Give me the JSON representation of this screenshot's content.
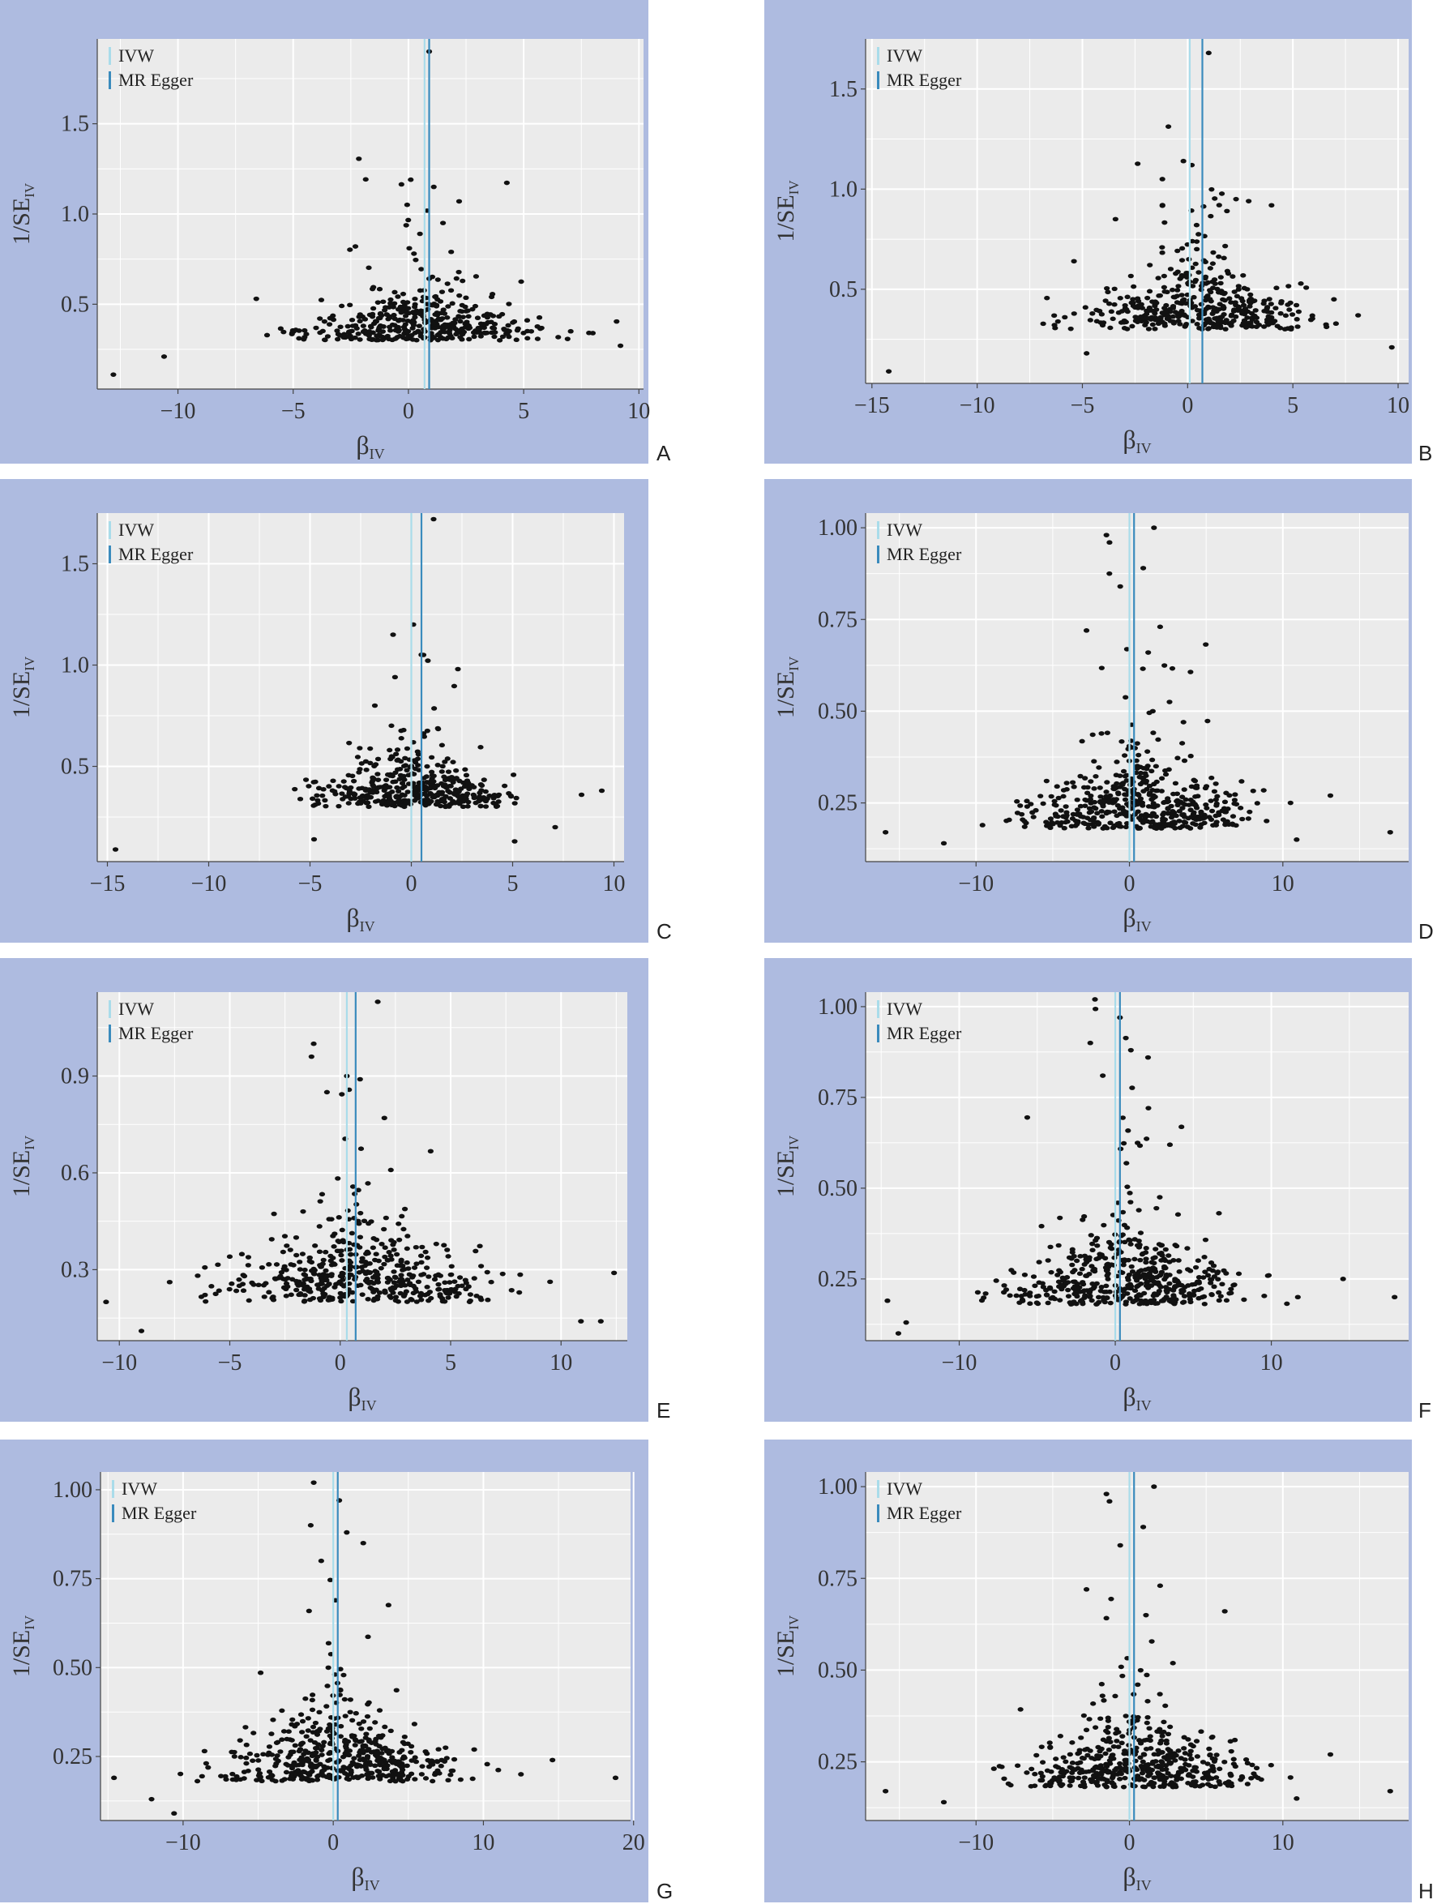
{
  "legend": [
    {
      "name": "IVW",
      "color": "#a9dcea"
    },
    {
      "name": "MR Egger",
      "color": "#3a8bbd"
    }
  ],
  "colors": {
    "frame": "#aebbe0",
    "plot_bg": "#ebebeb",
    "grid": "#ffffff",
    "point": "#111111",
    "text": "#333333"
  },
  "chart_data": [
    {
      "type": "scatter",
      "panel": "A",
      "xlabel": "β",
      "xlabel_sub": "IV",
      "ylabel": "1/SE",
      "ylabel_sub": "IV",
      "xlim": [
        -13.5,
        10.2
      ],
      "ylim": [
        0.03,
        1.97
      ],
      "xticks": [
        -10,
        -5,
        0,
        5,
        10
      ],
      "xtick_labels": [
        "−10",
        "−5",
        "0",
        "5",
        "10"
      ],
      "yticks": [
        0.5,
        1.0,
        1.5
      ],
      "ytick_labels": [
        "0.5",
        "1.0",
        "1.5"
      ],
      "lines": {
        "IVW": 0.7,
        "MR Egger": 0.9
      },
      "bulk": {
        "n": 420,
        "x_sd": 2.4,
        "x_center": 0.5,
        "x_min": -6.5,
        "x_max": 9.2,
        "y_min": 0.18,
        "y_base": 0.3,
        "y_scale": 0.08,
        "seed": 11
      },
      "points": [
        [
          -12.8,
          0.11
        ],
        [
          -10.6,
          0.21
        ],
        [
          0.9,
          1.9
        ],
        [
          0.1,
          1.19
        ],
        [
          1.1,
          1.15
        ],
        [
          2.2,
          1.07
        ],
        [
          1.5,
          0.95
        ],
        [
          -2.3,
          0.82
        ],
        [
          0.5,
          0.89
        ],
        [
          9.2,
          0.27
        ],
        [
          8.0,
          0.34
        ],
        [
          -6.6,
          0.53
        ]
      ]
    },
    {
      "type": "scatter",
      "panel": "B",
      "xlabel": "β",
      "xlabel_sub": "IV",
      "ylabel": "1/SE",
      "ylabel_sub": "IV",
      "xlim": [
        -15.3,
        10.5
      ],
      "ylim": [
        0.03,
        1.75
      ],
      "xticks": [
        -15,
        -10,
        -5,
        0,
        5,
        10
      ],
      "xtick_labels": [
        "−15",
        "−10",
        "−5",
        "0",
        "5",
        "10"
      ],
      "yticks": [
        0.5,
        1.0,
        1.5
      ],
      "ytick_labels": [
        "0.5",
        "1.0",
        "1.5"
      ],
      "lines": {
        "IVW": 0.1,
        "MR Egger": 0.7
      },
      "bulk": {
        "n": 420,
        "x_sd": 2.6,
        "x_center": 0.3,
        "x_min": -8,
        "x_max": 8.5,
        "y_min": 0.2,
        "y_base": 0.3,
        "y_scale": 0.09,
        "seed": 23
      },
      "points": [
        [
          -14.2,
          0.09
        ],
        [
          1.0,
          1.68
        ],
        [
          -0.2,
          1.14
        ],
        [
          0.2,
          1.12
        ],
        [
          -1.2,
          1.05
        ],
        [
          2.3,
          0.95
        ],
        [
          2.9,
          0.94
        ],
        [
          1.5,
          0.92
        ],
        [
          9.7,
          0.21
        ],
        [
          8.1,
          0.37
        ],
        [
          -5.4,
          0.64
        ],
        [
          -4.8,
          0.18
        ]
      ]
    },
    {
      "type": "scatter",
      "panel": "C",
      "xlabel": "β",
      "xlabel_sub": "IV",
      "ylabel": "1/SE",
      "ylabel_sub": "IV",
      "xlim": [
        -15.5,
        10.5
      ],
      "ylim": [
        0.03,
        1.75
      ],
      "xticks": [
        -15,
        -10,
        -5,
        0,
        5,
        10
      ],
      "xtick_labels": [
        "−15",
        "−10",
        "−5",
        "0",
        "5",
        "10"
      ],
      "yticks": [
        0.5,
        1.0,
        1.5
      ],
      "ytick_labels": [
        "0.5",
        "1.0",
        "1.5"
      ],
      "lines": {
        "IVW": 0.0,
        "MR Egger": 0.5
      },
      "bulk": {
        "n": 400,
        "x_sd": 2.3,
        "x_center": 0.0,
        "x_min": -7.5,
        "x_max": 5.5,
        "y_min": 0.2,
        "y_base": 0.3,
        "y_scale": 0.08,
        "seed": 37
      },
      "points": [
        [
          -14.6,
          0.09
        ],
        [
          1.1,
          1.72
        ],
        [
          0.1,
          1.2
        ],
        [
          -0.9,
          1.15
        ],
        [
          0.6,
          1.05
        ],
        [
          2.3,
          0.98
        ],
        [
          -1.8,
          0.8
        ],
        [
          9.4,
          0.38
        ],
        [
          8.4,
          0.36
        ],
        [
          7.1,
          0.2
        ],
        [
          5.1,
          0.13
        ],
        [
          -4.8,
          0.14
        ]
      ]
    },
    {
      "type": "scatter",
      "panel": "D",
      "xlabel": "β",
      "xlabel_sub": "IV",
      "ylabel": "1/SE",
      "ylabel_sub": "IV",
      "xlim": [
        -17.2,
        18.2
      ],
      "ylim": [
        0.09,
        1.04
      ],
      "xticks": [
        -10,
        0,
        10
      ],
      "xtick_labels": [
        "−10",
        "0",
        "10"
      ],
      "yticks": [
        0.25,
        0.5,
        0.75,
        1.0
      ],
      "ytick_labels": [
        "0.25",
        "0.50",
        "0.75",
        "1.00"
      ],
      "lines": {
        "IVW": 0.0,
        "MR Egger": 0.3
      },
      "bulk": {
        "n": 480,
        "x_sd": 3.6,
        "x_center": 0.5,
        "x_min": -11,
        "x_max": 10.5,
        "y_min": 0.12,
        "y_base": 0.18,
        "y_scale": 0.06,
        "seed": 41
      },
      "points": [
        [
          -15.9,
          0.17
        ],
        [
          17.0,
          0.17
        ],
        [
          -12.1,
          0.14
        ],
        [
          13.1,
          0.27
        ],
        [
          1.6,
          1.0
        ],
        [
          -1.5,
          0.98
        ],
        [
          -1.3,
          0.96
        ],
        [
          0.9,
          0.89
        ],
        [
          -0.6,
          0.84
        ],
        [
          2.0,
          0.73
        ],
        [
          -2.8,
          0.72
        ],
        [
          10.9,
          0.15
        ]
      ]
    },
    {
      "type": "scatter",
      "panel": "E",
      "xlabel": "β",
      "xlabel_sub": "IV",
      "ylabel": "1/SE",
      "ylabel_sub": "IV",
      "xlim": [
        -11.0,
        13.0
      ],
      "ylim": [
        0.08,
        1.16
      ],
      "xticks": [
        -10,
        -5,
        0,
        5,
        10
      ],
      "xtick_labels": [
        "−10",
        "−5",
        "0",
        "5",
        "10"
      ],
      "yticks": [
        0.3,
        0.6,
        0.9
      ],
      "ytick_labels": [
        "0.3",
        "0.6",
        "0.9"
      ],
      "lines": {
        "IVW": 0.3,
        "MR Egger": 0.7
      },
      "bulk": {
        "n": 460,
        "x_sd": 3.0,
        "x_center": 0.8,
        "x_min": -10.5,
        "x_max": 10.5,
        "y_min": 0.13,
        "y_base": 0.2,
        "y_scale": 0.07,
        "seed": 53
      },
      "points": [
        [
          -10.6,
          0.2
        ],
        [
          12.4,
          0.29
        ],
        [
          11.8,
          0.14
        ],
        [
          10.9,
          0.14
        ],
        [
          -9.0,
          0.11
        ],
        [
          1.7,
          1.13
        ],
        [
          -1.2,
          1.0
        ],
        [
          -1.3,
          0.96
        ],
        [
          0.3,
          0.9
        ],
        [
          0.9,
          0.89
        ],
        [
          -0.6,
          0.85
        ],
        [
          2.0,
          0.77
        ]
      ]
    },
    {
      "type": "scatter",
      "panel": "F",
      "xlabel": "β",
      "xlabel_sub": "IV",
      "ylabel": "1/SE",
      "ylabel_sub": "IV",
      "xlim": [
        -16.0,
        18.8
      ],
      "ylim": [
        0.08,
        1.04
      ],
      "xticks": [
        -10,
        0,
        10
      ],
      "xtick_labels": [
        "−10",
        "0",
        "10"
      ],
      "yticks": [
        0.25,
        0.5,
        0.75,
        1.0
      ],
      "ytick_labels": [
        "0.25",
        "0.50",
        "0.75",
        "1.00"
      ],
      "lines": {
        "IVW": 0.0,
        "MR Egger": 0.3
      },
      "bulk": {
        "n": 480,
        "x_sd": 3.5,
        "x_center": 0.5,
        "x_min": -10.5,
        "x_max": 11,
        "y_min": 0.12,
        "y_base": 0.18,
        "y_scale": 0.06,
        "seed": 67
      },
      "points": [
        [
          -14.6,
          0.19
        ],
        [
          17.9,
          0.2
        ],
        [
          14.6,
          0.25
        ],
        [
          -13.4,
          0.13
        ],
        [
          -13.9,
          0.1
        ],
        [
          -1.3,
          1.02
        ],
        [
          0.3,
          0.97
        ],
        [
          -1.6,
          0.9
        ],
        [
          1.0,
          0.88
        ],
        [
          2.1,
          0.86
        ],
        [
          -0.8,
          0.81
        ],
        [
          11.7,
          0.2
        ]
      ]
    },
    {
      "type": "scatter",
      "panel": "G",
      "xlabel": "β",
      "xlabel_sub": "IV",
      "ylabel": "1/SE",
      "ylabel_sub": "IV",
      "xlim": [
        -15.5,
        19.8
      ],
      "ylim": [
        0.07,
        1.05
      ],
      "xticks": [
        -10,
        0,
        10,
        20
      ],
      "xtick_labels": [
        "−10",
        "0",
        "10",
        "20"
      ],
      "yticks": [
        0.25,
        0.5,
        0.75,
        1.0
      ],
      "ytick_labels": [
        "0.25",
        "0.50",
        "0.75",
        "1.00"
      ],
      "lines": {
        "IVW": 0.0,
        "MR Egger": 0.3
      },
      "bulk": {
        "n": 480,
        "x_sd": 3.6,
        "x_center": 0.6,
        "x_min": -10.5,
        "x_max": 11,
        "y_min": 0.12,
        "y_base": 0.18,
        "y_scale": 0.06,
        "seed": 79
      },
      "points": [
        [
          -14.6,
          0.19
        ],
        [
          18.8,
          0.19
        ],
        [
          14.6,
          0.24
        ],
        [
          -12.1,
          0.13
        ],
        [
          -10.6,
          0.09
        ],
        [
          -1.3,
          1.02
        ],
        [
          0.4,
          0.97
        ],
        [
          -1.5,
          0.9
        ],
        [
          0.9,
          0.88
        ],
        [
          2.0,
          0.85
        ],
        [
          -0.8,
          0.8
        ],
        [
          12.5,
          0.2
        ]
      ]
    },
    {
      "type": "scatter",
      "panel": "H",
      "xlabel": "β",
      "xlabel_sub": "IV",
      "ylabel": "1/SE",
      "ylabel_sub": "IV",
      "xlim": [
        -17.2,
        18.2
      ],
      "ylim": [
        0.09,
        1.04
      ],
      "xticks": [
        -10,
        0,
        10
      ],
      "xtick_labels": [
        "−10",
        "0",
        "10"
      ],
      "yticks": [
        0.25,
        0.5,
        0.75,
        1.0
      ],
      "ytick_labels": [
        "0.25",
        "0.50",
        "0.75",
        "1.00"
      ],
      "lines": {
        "IVW": 0.0,
        "MR Egger": 0.3
      },
      "bulk": {
        "n": 480,
        "x_sd": 3.6,
        "x_center": 0.5,
        "x_min": -11,
        "x_max": 10.5,
        "y_min": 0.12,
        "y_base": 0.18,
        "y_scale": 0.06,
        "seed": 91
      },
      "points": [
        [
          -15.9,
          0.17
        ],
        [
          17.0,
          0.17
        ],
        [
          -12.1,
          0.14
        ],
        [
          13.1,
          0.27
        ],
        [
          1.6,
          1.0
        ],
        [
          -1.5,
          0.98
        ],
        [
          -1.3,
          0.96
        ],
        [
          0.9,
          0.89
        ],
        [
          -0.6,
          0.84
        ],
        [
          2.0,
          0.73
        ],
        [
          -2.8,
          0.72
        ],
        [
          10.9,
          0.15
        ]
      ]
    }
  ]
}
